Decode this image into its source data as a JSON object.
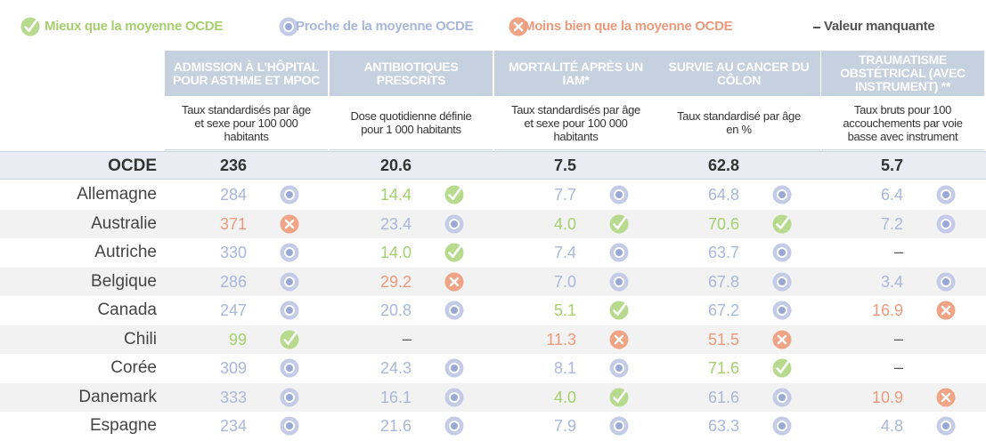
{
  "legend": [
    {
      "label": "Mieux que la moyenne OCDE",
      "icon": "check",
      "color": "#a6cf6d"
    },
    {
      "label": "Proche de la moyenne OCDE",
      "icon": "dot",
      "color": "#a9b7da"
    },
    {
      "label": "Moins bien que la moyenne OCDE",
      "icon": "cross",
      "color": "#ec9a7c"
    },
    {
      "label": "Valeur manquante",
      "icon": "dash",
      "color": "#555555"
    }
  ],
  "columns": [
    {
      "title": "ADMISSION À L’HÔPITAL POUR ASTHME ET MPOC",
      "subtitle": "Taux standardisés par âge et sexe pour 100 000 habitants"
    },
    {
      "title": "ANTIBIOTIQUES PRESCRITS",
      "subtitle": "Dose quotidienne définie pour 1 000 habitants"
    },
    {
      "title": "MORTALITÉ APRÈS UN IAM*",
      "subtitle": "Taux standardisés par âge et sexe pour 100 000 habitants"
    },
    {
      "title": "SURVIE AU CANCER DU CÔLON",
      "subtitle": "Taux standardisé par âge en %"
    },
    {
      "title": "TRAUMATISME OBSTÉTRICAL (AVEC INSTRUMENT) **",
      "subtitle": "Taux bruts pour 100 accouchements par voie basse avec instrument"
    }
  ],
  "oecd": {
    "label": "OCDE",
    "values": [
      "236",
      "20.6",
      "7.5",
      "62.8",
      "5.7"
    ]
  },
  "rows": [
    {
      "country": "Allemagne",
      "cells": [
        {
          "value": "284",
          "icon": "dot"
        },
        {
          "value": "14.4",
          "icon": "check"
        },
        {
          "value": "7.7",
          "icon": "dot"
        },
        {
          "value": "64.8",
          "icon": "dot"
        },
        {
          "value": "6.4",
          "icon": "dot"
        }
      ]
    },
    {
      "country": "Australie",
      "cells": [
        {
          "value": "371",
          "icon": "cross"
        },
        {
          "value": "23.4",
          "icon": "dot"
        },
        {
          "value": "4.0",
          "icon": "check"
        },
        {
          "value": "70.6",
          "icon": "check"
        },
        {
          "value": "7.2",
          "icon": "dot"
        }
      ]
    },
    {
      "country": "Autriche",
      "cells": [
        {
          "value": "330",
          "icon": "dot"
        },
        {
          "value": "14.0",
          "icon": "check"
        },
        {
          "value": "7.4",
          "icon": "dot"
        },
        {
          "value": "63.7",
          "icon": "dot"
        },
        {
          "value": "–",
          "icon": "dash"
        }
      ]
    },
    {
      "country": "Belgique",
      "cells": [
        {
          "value": "286",
          "icon": "dot"
        },
        {
          "value": "29.2",
          "icon": "cross"
        },
        {
          "value": "7.0",
          "icon": "dot"
        },
        {
          "value": "67.8",
          "icon": "dot"
        },
        {
          "value": "3.4",
          "icon": "dot"
        }
      ]
    },
    {
      "country": "Canada",
      "cells": [
        {
          "value": "247",
          "icon": "dot"
        },
        {
          "value": "20.8",
          "icon": "dot"
        },
        {
          "value": "5.1",
          "icon": "check"
        },
        {
          "value": "67.2",
          "icon": "dot"
        },
        {
          "value": "16.9",
          "icon": "cross"
        }
      ]
    },
    {
      "country": "Chili",
      "cells": [
        {
          "value": "99",
          "icon": "check"
        },
        {
          "value": "–",
          "icon": "dash"
        },
        {
          "value": "11.3",
          "icon": "cross"
        },
        {
          "value": "51.5",
          "icon": "cross"
        },
        {
          "value": "–",
          "icon": "dash"
        }
      ]
    },
    {
      "country": "Corée",
      "cells": [
        {
          "value": "309",
          "icon": "dot"
        },
        {
          "value": "24.3",
          "icon": "dot"
        },
        {
          "value": "8.1",
          "icon": "dot"
        },
        {
          "value": "71.6",
          "icon": "check"
        },
        {
          "value": "–",
          "icon": "dash"
        }
      ]
    },
    {
      "country": "Danemark",
      "cells": [
        {
          "value": "333",
          "icon": "dot"
        },
        {
          "value": "16.1",
          "icon": "dot"
        },
        {
          "value": "4.0",
          "icon": "check"
        },
        {
          "value": "61.6",
          "icon": "dot"
        },
        {
          "value": "10.9",
          "icon": "cross"
        }
      ]
    },
    {
      "country": "Espagne",
      "cells": [
        {
          "value": "234",
          "icon": "dot"
        },
        {
          "value": "21.6",
          "icon": "dot"
        },
        {
          "value": "7.9",
          "icon": "dot"
        },
        {
          "value": "63.3",
          "icon": "dot"
        },
        {
          "value": "4.8",
          "icon": "dot"
        }
      ]
    }
  ]
}
